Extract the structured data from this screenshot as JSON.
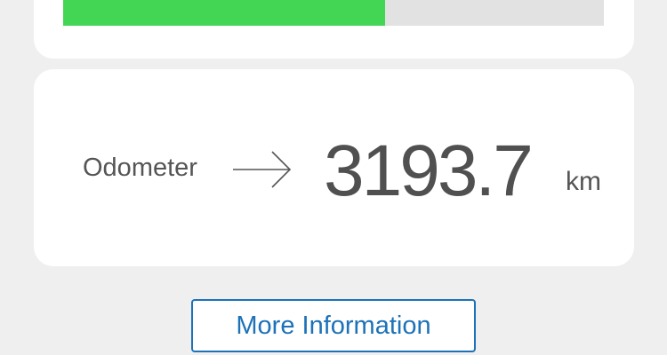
{
  "progress": {
    "fraction": 0.595,
    "fill_color": "#43d655",
    "track_color": "#e2e2e2"
  },
  "odometer": {
    "label": "Odometer",
    "arrow_icon": "arrow-right-icon",
    "value": "3193.7",
    "unit": "km"
  },
  "more_info": {
    "label": "More Information",
    "accent_color": "#1d72b8"
  }
}
